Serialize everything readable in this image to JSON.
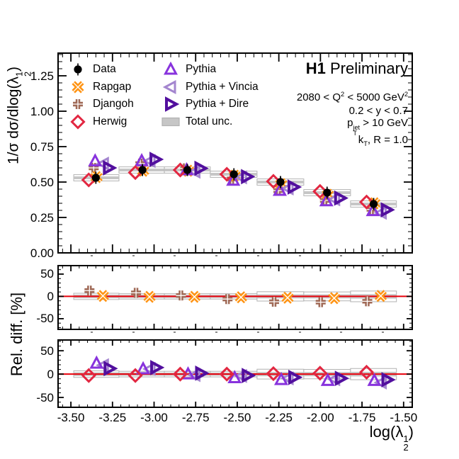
{
  "annotations": {
    "experiment": "H1",
    "status": " Preliminary",
    "q2_a": "2080 < Q",
    "q2_sup1": "2",
    "q2_b": " < 5000 GeV",
    "q2_sup2": "2",
    "y_cut": "0.2 < y < 0.7",
    "pt_a": "p",
    "pt_sup": "jet",
    "pt_sub": "T",
    "pt_b": " > 10 GeV",
    "kt_a": "k",
    "kt_sub": "T",
    "kt_b": ", R = 1.0"
  },
  "axes": {
    "x_title_a": "log(",
    "x_title_lam": "λ",
    "x_title_sup": "1",
    "x_title_sub": "2",
    "x_title_b": ")",
    "y_title_a": "1/σ dσ/dlog(",
    "y_title_lam": "λ",
    "y_title_sup": "1",
    "y_title_sub": "2",
    "y_title_b": ")",
    "rel_title": "Rel. diff. [%]"
  },
  "legend": [
    {
      "label": "Data",
      "marker": "data"
    },
    {
      "label": "Rapgap",
      "marker": "rapgap"
    },
    {
      "label": "Djangoh",
      "marker": "djangoh"
    },
    {
      "label": "Herwig",
      "marker": "herwig"
    },
    {
      "label": "Pythia",
      "marker": "pythia"
    },
    {
      "label": "Pythia + Vincia",
      "marker": "vincia"
    },
    {
      "label": "Pythia + Dire",
      "marker": "dire"
    },
    {
      "label": "Total unc.",
      "marker": "unc"
    }
  ],
  "colors": {
    "data": "#000000",
    "rapgap": "#ff9414",
    "djangoh": "#a06a57",
    "herwig": "#e22741",
    "pythia": "#8833dd",
    "vincia": "#a486cf",
    "dire": "#520f9e",
    "band_fill": "#c6c6c6",
    "band_edge": "#b2b2b2",
    "zero_line": "#e8000b",
    "frame": "#000000"
  },
  "chart_data": {
    "type": "scatter",
    "x_range": [
      -3.577,
      -1.448
    ],
    "x_major_ticks": [
      -3.5,
      -3.25,
      -3.0,
      -2.75,
      -2.5,
      -2.25,
      -2.0,
      -1.75,
      -1.5
    ],
    "x_tick_labels": [
      "-3.50",
      "-3.25",
      "-3.00",
      "-2.75",
      "-2.50",
      "-2.25",
      "-2.00",
      "-1.75",
      "-1.50"
    ],
    "x_minor_step": 0.05,
    "bin_centers": [
      -3.35,
      -3.07,
      -2.8,
      -2.52,
      -2.24,
      -1.96,
      -1.68
    ],
    "bin_edges": [
      -3.483,
      -3.211,
      -2.938,
      -2.662,
      -2.381,
      -2.1,
      -1.819,
      -1.543
    ],
    "panels": {
      "main": {
        "y_range": [
          0,
          1.41
        ],
        "y_major_ticks": [
          0,
          0.25,
          0.5,
          0.75,
          1.0,
          1.25
        ],
        "y_tick_labels": [
          "0.00",
          "0.25",
          "0.50",
          "0.75",
          "1.00",
          "1.25"
        ],
        "y_minor_step": 0.05,
        "unc_inner_half": 0.01,
        "unc_outer_half": 0.022,
        "series": [
          {
            "name": "djangoh",
            "marker": "djangoh",
            "dx": -3,
            "values": [
              0.6,
              0.63,
              0.597,
              0.522,
              0.44,
              0.37,
              0.307
            ]
          },
          {
            "name": "rapgap",
            "marker": "rapgap",
            "dx": 1,
            "values": [
              0.535,
              0.58,
              0.58,
              0.545,
              0.485,
              0.41,
              0.35
            ]
          },
          {
            "name": "vincia",
            "marker": "vincia",
            "dx": 11,
            "values": [
              0.63,
              0.649,
              0.573,
              0.533,
              0.455,
              0.378,
              0.283
            ]
          },
          {
            "name": "dire",
            "marker": "dire",
            "dx": 18,
            "values": [
              0.6,
              0.66,
              0.597,
              0.538,
              0.465,
              0.387,
              0.304
            ]
          },
          {
            "name": "pythia",
            "marker": "pythia",
            "dx": -1,
            "values": [
              0.648,
              0.649,
              0.585,
              0.511,
              0.44,
              0.366,
              0.297
            ]
          },
          {
            "name": "herwig",
            "marker": "herwig",
            "dx": -10,
            "values": [
              0.515,
              0.567,
              0.585,
              0.555,
              0.505,
              0.434,
              0.359
            ]
          },
          {
            "name": "data",
            "marker": "data",
            "dx": 0,
            "values": [
              0.53,
              0.585,
              0.585,
              0.555,
              0.5,
              0.425,
              0.345
            ],
            "stat_err": 0.022
          }
        ]
      },
      "rel_mid": {
        "y_range": [
          -74,
          69
        ],
        "y_major_ticks": [
          -50,
          0,
          50
        ],
        "y_tick_labels": [
          "-50",
          "0",
          "50"
        ],
        "y_minor_step": 10,
        "zero_line": true,
        "unc_inner_half": [
          4,
          3.5,
          3.5,
          3.5,
          4.5,
          4.5,
          5
        ],
        "unc_outer_half": [
          7,
          6,
          6,
          6,
          10.5,
          10,
          12
        ],
        "series": [
          {
            "name": "djangoh",
            "marker": "djangoh",
            "dx": -9,
            "values": [
              13,
              8,
              2,
              -6,
              -12,
              -13,
              -11
            ]
          },
          {
            "name": "rapgap",
            "marker": "rapgap",
            "dx": 10,
            "values": [
              1,
              -1,
              -1,
              -2,
              -3,
              -4,
              1
            ]
          }
        ]
      },
      "rel_bot": {
        "y_range": [
          -71,
          73
        ],
        "y_major_ticks": [
          -50,
          0,
          50
        ],
        "y_tick_labels": [
          "-50",
          "0",
          "50"
        ],
        "y_minor_step": 10,
        "zero_line": true,
        "unc_inner_half": [
          4,
          3.5,
          3.5,
          3.5,
          4.5,
          4.5,
          5
        ],
        "unc_outer_half": [
          7,
          6,
          6,
          6,
          10.5,
          10,
          12
        ],
        "series": [
          {
            "name": "vincia",
            "marker": "vincia",
            "dx": 11,
            "values": [
              19,
              11,
              -2,
              -4,
              -9,
              -11,
              -18
            ]
          },
          {
            "name": "dire",
            "marker": "dire",
            "dx": 19,
            "values": [
              12,
              14,
              2,
              -3,
              -7,
              -9,
              -12
            ]
          },
          {
            "name": "pythia",
            "marker": "pythia",
            "dx": 1,
            "values": [
              23,
              11,
              0,
              -8,
              -12,
              -14,
              -14
            ]
          },
          {
            "name": "herwig",
            "marker": "herwig",
            "dx": -10,
            "values": [
              -3,
              -3,
              0,
              0,
              1,
              2,
              4
            ]
          }
        ]
      }
    }
  }
}
